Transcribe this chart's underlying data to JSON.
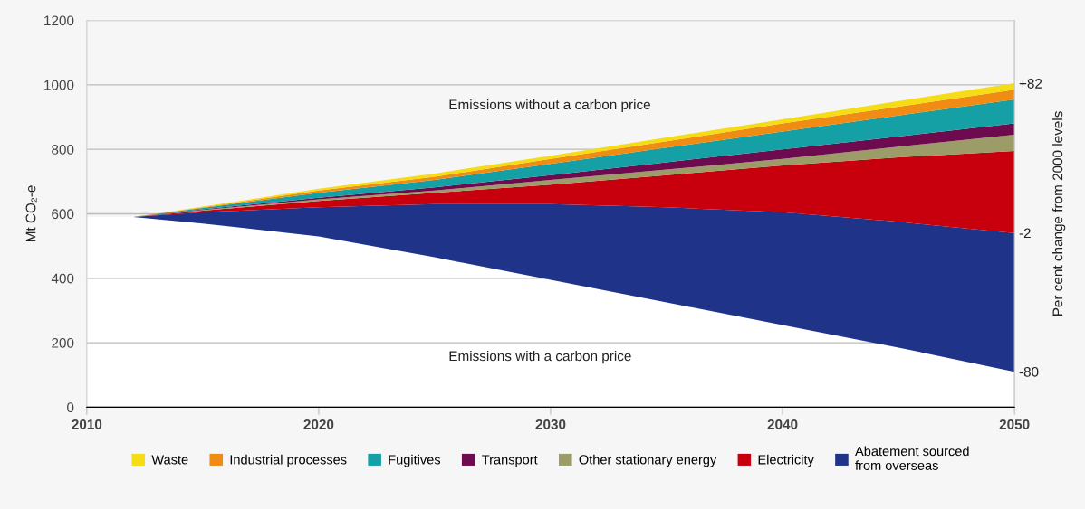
{
  "chart_data": {
    "type": "area",
    "stacked": true,
    "x": [
      2010,
      2012,
      2015,
      2020,
      2025,
      2030,
      2035,
      2040,
      2045,
      2050
    ],
    "series": [
      {
        "color": "#ffffff",
        "values": [
          590,
          590,
          570,
          530,
          465,
          395,
          325,
          255,
          185,
          110
        ]
      },
      {
        "name": "Abatement sourced\nfrom overseas",
        "color": "#1f3388",
        "values": [
          0,
          0,
          35,
          90,
          165,
          235,
          295,
          350,
          390,
          430
        ]
      },
      {
        "name": "Electricity",
        "color": "#c8000d",
        "values": [
          0,
          0,
          5,
          20,
          35,
          60,
          100,
          145,
          200,
          255
        ]
      },
      {
        "name": "Other stationary energy",
        "color": "#9b9c68",
        "values": [
          0,
          0,
          2,
          5,
          7,
          15,
          17,
          20,
          33,
          50
        ]
      },
      {
        "name": "Transport",
        "color": "#6e0a4e",
        "values": [
          0,
          0,
          2,
          5,
          10,
          15,
          23,
          30,
          32,
          35
        ]
      },
      {
        "name": "Fugitives",
        "color": "#14a0a4",
        "values": [
          0,
          0,
          4,
          15,
          23,
          35,
          45,
          55,
          65,
          75
        ]
      },
      {
        "name": "Industrial processes",
        "color": "#f08c14",
        "values": [
          0,
          0,
          2,
          7,
          10,
          15,
          20,
          25,
          27,
          30
        ]
      },
      {
        "name": "Waste",
        "color": "#f5dc14",
        "values": [
          0,
          0,
          2,
          6,
          10,
          10,
          12,
          13,
          18,
          20
        ]
      }
    ],
    "ylabel": "Mt CO₂-e",
    "y2label": "Per cent change from 2000 levels",
    "xlim": [
      2010,
      2050
    ],
    "xticks": [
      2010,
      2020,
      2030,
      2040,
      2050
    ],
    "ylim": [
      0,
      1200
    ],
    "yticks": [
      0,
      200,
      400,
      600,
      800,
      1000,
      1200
    ],
    "y2lim": [
      -100,
      117.4
    ],
    "y2ticks": [
      {
        "value": 82,
        "label": "+82"
      },
      {
        "value": -2,
        "label": "-2"
      },
      {
        "value": -80,
        "label": "-80"
      }
    ],
    "annotations": [
      "Emissions without a carbon price",
      "Emissions with a carbon price"
    ],
    "grid": "y",
    "legend": "bottom"
  }
}
